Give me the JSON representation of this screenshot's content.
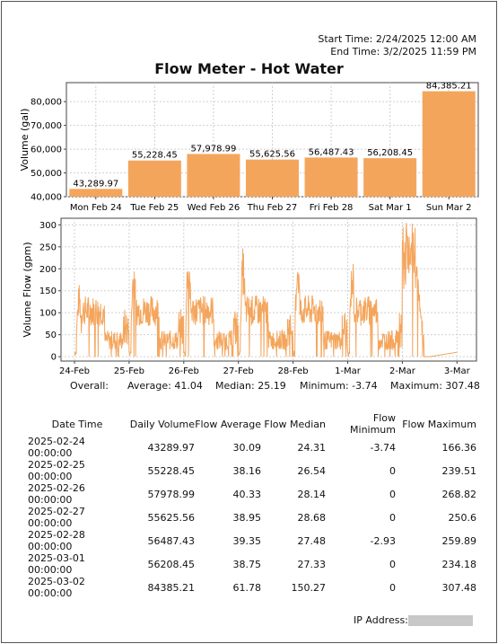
{
  "header": {
    "start_time": "Start Time: 2/24/2025 12:00 AM",
    "end_time": "End Time: 3/2/2025 11:59 PM"
  },
  "title": "Flow Meter - Hot Water",
  "colors": {
    "bar": "#f4a55c",
    "line": "#f4a55c",
    "grid": "#d0d0d0"
  },
  "chart_data": [
    {
      "type": "bar",
      "title": "",
      "xlabel": "",
      "ylabel": "Volume (gal)",
      "ylim": [
        40000,
        88000
      ],
      "yticks": [
        "40,000",
        "50,000",
        "60,000",
        "70,000",
        "80,000"
      ],
      "grid": true,
      "categories": [
        "Mon Feb 24",
        "Tue Feb 25",
        "Wed Feb 26",
        "Thu Feb 27",
        "Fri Feb 28",
        "Sat Mar 1",
        "Sun Mar 2"
      ],
      "values": [
        43289.97,
        55228.45,
        57978.99,
        55625.56,
        56487.43,
        56208.45,
        84385.21
      ],
      "value_labels": [
        "43,289.97",
        "55,228.45",
        "57,978.99",
        "55,625.56",
        "56,487.43",
        "56,208.45",
        "84,385.21"
      ]
    },
    {
      "type": "line",
      "title": "",
      "xlabel": "",
      "ylabel": "Volume Flow (gpm)",
      "ylim": [
        -10,
        315
      ],
      "yticks": [
        "0",
        "50",
        "100",
        "150",
        "200",
        "250",
        "300"
      ],
      "x_range": [
        "2025-02-24",
        "2025-03-03"
      ],
      "xticks": [
        "24-Feb",
        "25-Feb",
        "26-Feb",
        "27-Feb",
        "28-Feb",
        "1-Mar",
        "2-Mar",
        "3-Mar"
      ],
      "grid": true,
      "series_summary": [
        {
          "date": "2025-02-24",
          "average": 30.09,
          "median": 24.31,
          "minimum": -3.74,
          "maximum": 166.36
        },
        {
          "date": "2025-02-25",
          "average": 38.16,
          "median": 26.54,
          "minimum": 0,
          "maximum": 239.51
        },
        {
          "date": "2025-02-26",
          "average": 40.33,
          "median": 28.14,
          "minimum": 0,
          "maximum": 268.82
        },
        {
          "date": "2025-02-27",
          "average": 38.95,
          "median": 28.68,
          "minimum": 0,
          "maximum": 250.6
        },
        {
          "date": "2025-02-28",
          "average": 39.35,
          "median": 27.48,
          "minimum": -2.93,
          "maximum": 259.89
        },
        {
          "date": "2025-03-01",
          "average": 38.75,
          "median": 27.33,
          "minimum": 0,
          "maximum": 234.18
        },
        {
          "date": "2025-03-02",
          "average": 61.78,
          "median": 150.27,
          "minimum": 0,
          "maximum": 307.48
        }
      ]
    }
  ],
  "overall": {
    "label": "Overall:",
    "average": "Average: 41.04",
    "median": "Median: 25.19",
    "minimum": "Minimum: -3.74",
    "maximum": "Maximum: 307.48"
  },
  "table": {
    "headers": [
      "Date Time",
      "Daily Volume",
      "Flow Average",
      "Flow Median",
      "Flow Minimum",
      "Flow Maximum"
    ],
    "rows": [
      [
        "2025-02-24 00:00:00",
        "43289.97",
        "30.09",
        "24.31",
        "-3.74",
        "166.36"
      ],
      [
        "2025-02-25 00:00:00",
        "55228.45",
        "38.16",
        "26.54",
        "0",
        "239.51"
      ],
      [
        "2025-02-26 00:00:00",
        "57978.99",
        "40.33",
        "28.14",
        "0",
        "268.82"
      ],
      [
        "2025-02-27 00:00:00",
        "55625.56",
        "38.95",
        "28.68",
        "0",
        "250.6"
      ],
      [
        "2025-02-28 00:00:00",
        "56487.43",
        "39.35",
        "27.48",
        "-2.93",
        "259.89"
      ],
      [
        "2025-03-01 00:00:00",
        "56208.45",
        "38.75",
        "27.33",
        "0",
        "234.18"
      ],
      [
        "2025-03-02 00:00:00",
        "84385.21",
        "61.78",
        "150.27",
        "0",
        "307.48"
      ]
    ]
  },
  "footer": {
    "ip_label": "IP Address:"
  }
}
